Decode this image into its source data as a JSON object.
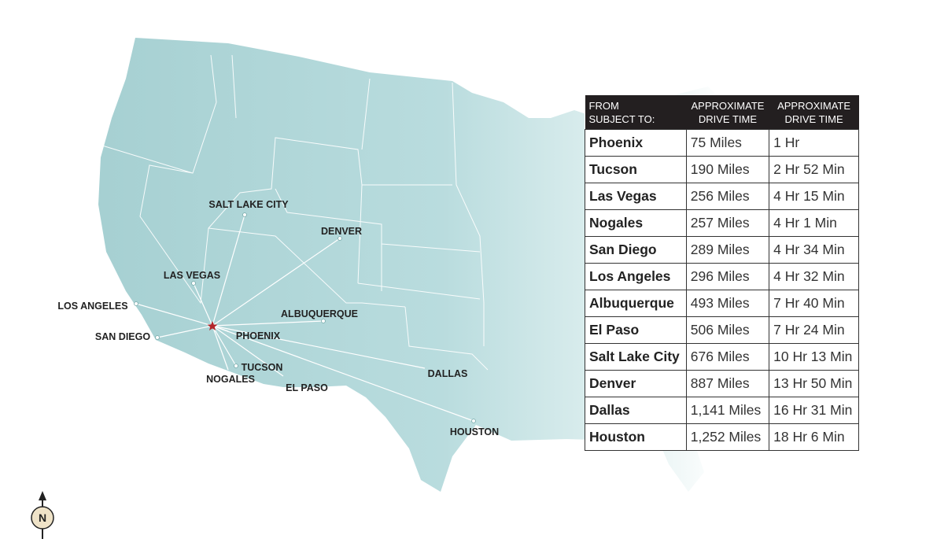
{
  "map": {
    "cities": [
      {
        "label": "SALT LAKE CITY"
      },
      {
        "label": "DENVER"
      },
      {
        "label": "LAS VEGAS"
      },
      {
        "label": "LOS ANGELES"
      },
      {
        "label": "ALBUQUERQUE"
      },
      {
        "label": "SAN DIEGO"
      },
      {
        "label": "PHOENIX"
      },
      {
        "label": "TUCSON"
      },
      {
        "label": "NOGALES"
      },
      {
        "label": "EL PASO"
      },
      {
        "label": "DALLAS"
      },
      {
        "label": "HOUSTON"
      }
    ]
  },
  "table": {
    "header": [
      [
        "FROM",
        "SUBJECT TO:"
      ],
      [
        "APPROXIMATE",
        "DRIVE TIME"
      ],
      [
        "APPROXIMATE",
        "DRIVE TIME"
      ]
    ],
    "rows": [
      [
        "Phoenix",
        "75 Miles",
        "1 Hr"
      ],
      [
        "Tucson",
        "190 Miles",
        "2 Hr 52 Min"
      ],
      [
        "Las Vegas",
        "256 Miles",
        "4 Hr 15 Min"
      ],
      [
        "Nogales",
        "257 Miles",
        "4 Hr 1 Min"
      ],
      [
        "San Diego",
        "289 Miles",
        "4 Hr 34 Min"
      ],
      [
        "Los Angeles",
        "296 Miles",
        "4 Hr 32 Min"
      ],
      [
        "Albuquerque",
        "493 Miles",
        "7 Hr 40 Min"
      ],
      [
        "El Paso",
        "506 Miles",
        "7 Hr 24 Min"
      ],
      [
        "Salt Lake City",
        "676 Miles",
        "10 Hr 13 Min"
      ],
      [
        "Denver",
        "887 Miles",
        "13 Hr 50 Min"
      ],
      [
        "Dallas",
        "1,141 Miles",
        "16 Hr 31 Min"
      ],
      [
        "Houston",
        "1,252 Miles",
        "18 Hr 6 Min"
      ]
    ]
  },
  "compass": {
    "label": "N"
  }
}
